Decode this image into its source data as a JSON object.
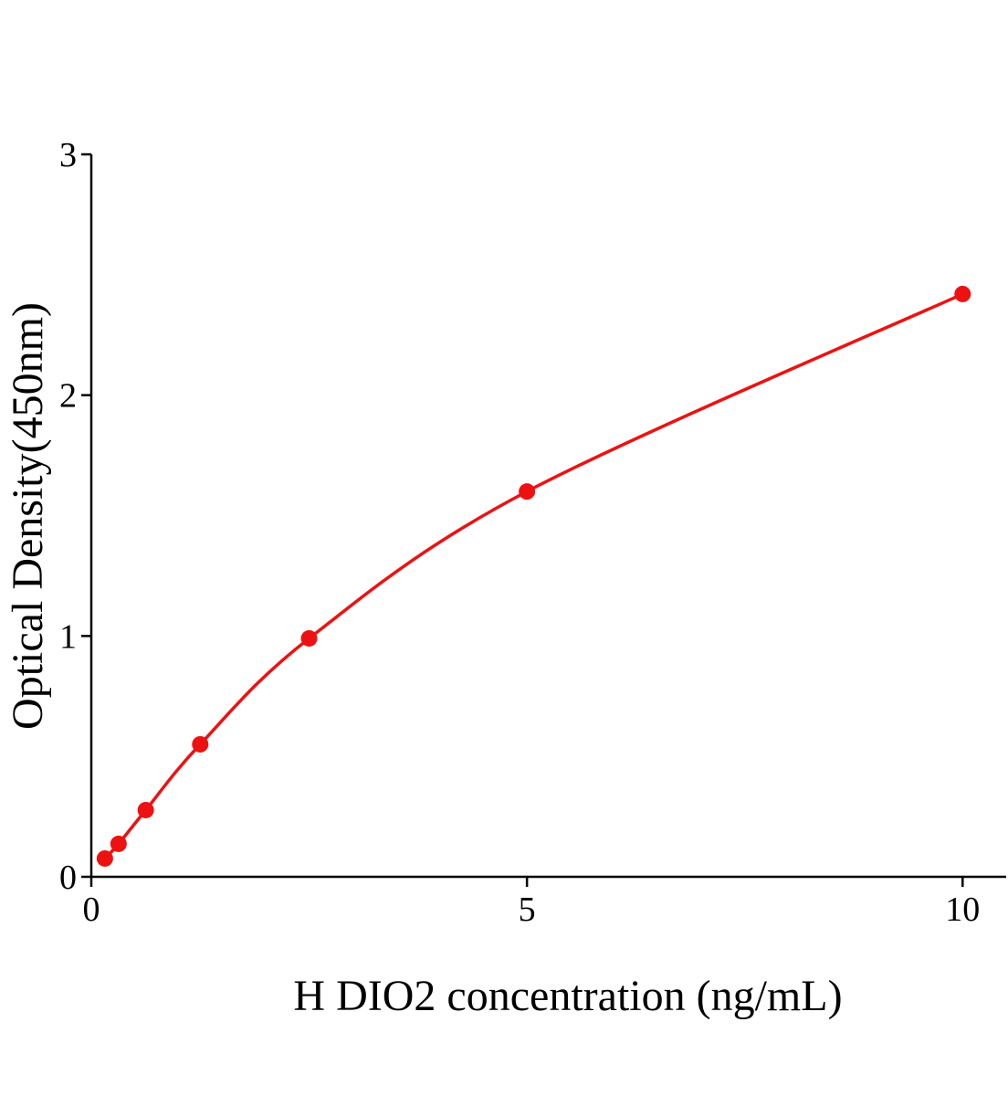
{
  "chart_data": {
    "type": "scatter",
    "x_label": "H DIO2 concentration (ng/mL)",
    "y_label": "Optical Density(450nm)",
    "series": [
      {
        "color": "#ee1111",
        "x": [
          0.156,
          0.313,
          0.625,
          1.25,
          2.5,
          5,
          10
        ],
        "values": [
          0.076,
          0.137,
          0.277,
          0.55,
          0.99,
          1.6,
          2.42
        ]
      }
    ],
    "xlim": [
      0,
      10.5
    ],
    "xticks": [
      0,
      5,
      10
    ],
    "ylim": [
      0,
      3
    ],
    "yticks": [
      0,
      1,
      2,
      3
    ],
    "fit_line": true
  }
}
